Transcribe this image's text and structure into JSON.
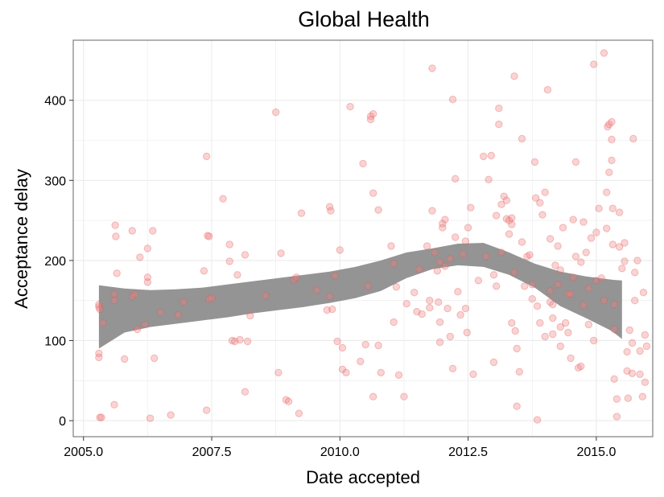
{
  "chart_data": {
    "type": "scatter",
    "title": "Global Health",
    "xlabel": "Date accepted",
    "ylabel": "Acceptance delay",
    "xlim": [
      2004.8,
      2016.1
    ],
    "ylim": [
      -20,
      475
    ],
    "x_ticks": [
      2005.0,
      2007.5,
      2010.0,
      2012.5,
      2015.0
    ],
    "x_tick_labels": [
      "2005.0",
      "2007.5",
      "2010.0",
      "2012.5",
      "2015.0"
    ],
    "y_ticks": [
      0,
      100,
      200,
      300,
      400
    ],
    "y_tick_labels": [
      "0",
      "100",
      "200",
      "300",
      "400"
    ],
    "grid": true,
    "colors": {
      "points": "#f08080",
      "points_stroke": "#e05555",
      "band": "#888888",
      "grid": "#ebebeb",
      "panel_border": "#7f7f7f"
    },
    "smooth_band": {
      "x": [
        2005.3,
        2005.8,
        2006.3,
        2006.8,
        2007.3,
        2007.8,
        2008.3,
        2008.8,
        2009.3,
        2009.8,
        2010.3,
        2010.8,
        2011.3,
        2011.8,
        2012.3,
        2012.8,
        2013.3,
        2013.8,
        2014.3,
        2014.8,
        2015.3,
        2015.5
      ],
      "lower": [
        90,
        110,
        117,
        121,
        125,
        129,
        134,
        138,
        142,
        147,
        153,
        162,
        178,
        189,
        194,
        192,
        182,
        166,
        143,
        128,
        112,
        102
      ],
      "upper": [
        169,
        165,
        163,
        164,
        166,
        170,
        174,
        178,
        182,
        186,
        192,
        200,
        210,
        215,
        221,
        222,
        210,
        196,
        186,
        180,
        176,
        175
      ]
    },
    "points": [
      [
        2005.32,
        4
      ],
      [
        2005.35,
        4
      ],
      [
        2005.3,
        84
      ],
      [
        2005.3,
        79
      ],
      [
        2005.3,
        142
      ],
      [
        2005.3,
        145
      ],
      [
        2005.32,
        139
      ],
      [
        2005.38,
        122
      ],
      [
        2005.6,
        20
      ],
      [
        2005.62,
        244
      ],
      [
        2005.63,
        230
      ],
      [
        2005.65,
        184
      ],
      [
        2005.6,
        158
      ],
      [
        2005.6,
        150
      ],
      [
        2005.8,
        77
      ],
      [
        2005.95,
        237
      ],
      [
        2005.95,
        155
      ],
      [
        2006.0,
        158
      ],
      [
        2006.05,
        114
      ],
      [
        2006.1,
        204
      ],
      [
        2006.2,
        120
      ],
      [
        2006.25,
        215
      ],
      [
        2006.25,
        179
      ],
      [
        2006.25,
        173
      ],
      [
        2006.3,
        3
      ],
      [
        2006.35,
        237
      ],
      [
        2006.38,
        78
      ],
      [
        2006.5,
        135
      ],
      [
        2006.7,
        7
      ],
      [
        2006.85,
        132
      ],
      [
        2006.95,
        148
      ],
      [
        2007.35,
        187
      ],
      [
        2007.4,
        13
      ],
      [
        2007.4,
        330
      ],
      [
        2007.42,
        231
      ],
      [
        2007.45,
        230
      ],
      [
        2007.45,
        152
      ],
      [
        2007.5,
        153
      ],
      [
        2007.72,
        277
      ],
      [
        2007.85,
        220
      ],
      [
        2007.85,
        199
      ],
      [
        2007.9,
        100
      ],
      [
        2007.95,
        99
      ],
      [
        2008.0,
        182
      ],
      [
        2008.05,
        101
      ],
      [
        2008.15,
        36
      ],
      [
        2008.15,
        207
      ],
      [
        2008.2,
        99
      ],
      [
        2008.25,
        131
      ],
      [
        2008.55,
        156
      ],
      [
        2008.75,
        385
      ],
      [
        2008.8,
        60
      ],
      [
        2008.85,
        209
      ],
      [
        2008.95,
        26
      ],
      [
        2009.0,
        24
      ],
      [
        2009.1,
        176
      ],
      [
        2009.15,
        179
      ],
      [
        2009.2,
        9
      ],
      [
        2009.25,
        259
      ],
      [
        2009.55,
        163
      ],
      [
        2009.75,
        138
      ],
      [
        2009.8,
        155
      ],
      [
        2009.8,
        267
      ],
      [
        2009.82,
        262
      ],
      [
        2009.85,
        139
      ],
      [
        2009.9,
        181
      ],
      [
        2009.95,
        99
      ],
      [
        2010.0,
        213
      ],
      [
        2010.05,
        64
      ],
      [
        2010.05,
        91
      ],
      [
        2010.12,
        60
      ],
      [
        2010.2,
        392
      ],
      [
        2010.4,
        74
      ],
      [
        2010.45,
        321
      ],
      [
        2010.5,
        95
      ],
      [
        2010.55,
        168
      ],
      [
        2010.6,
        380
      ],
      [
        2010.6,
        376
      ],
      [
        2010.65,
        383
      ],
      [
        2010.65,
        284
      ],
      [
        2010.65,
        30
      ],
      [
        2010.75,
        263
      ],
      [
        2010.75,
        94
      ],
      [
        2010.8,
        60
      ],
      [
        2011.0,
        218
      ],
      [
        2011.05,
        196
      ],
      [
        2011.05,
        123
      ],
      [
        2011.1,
        167
      ],
      [
        2011.15,
        57
      ],
      [
        2011.25,
        30
      ],
      [
        2011.3,
        146
      ],
      [
        2011.45,
        160
      ],
      [
        2011.5,
        136
      ],
      [
        2011.55,
        189
      ],
      [
        2011.6,
        133
      ],
      [
        2011.7,
        218
      ],
      [
        2011.75,
        141
      ],
      [
        2011.75,
        150
      ],
      [
        2011.8,
        440
      ],
      [
        2011.8,
        262
      ],
      [
        2011.85,
        210
      ],
      [
        2011.9,
        187
      ],
      [
        2011.92,
        148
      ],
      [
        2011.95,
        198
      ],
      [
        2011.95,
        123
      ],
      [
        2011.95,
        98
      ],
      [
        2012.0,
        246
      ],
      [
        2012.0,
        241
      ],
      [
        2012.05,
        251
      ],
      [
        2012.05,
        193
      ],
      [
        2012.1,
        140
      ],
      [
        2012.15,
        105
      ],
      [
        2012.15,
        202
      ],
      [
        2012.2,
        401
      ],
      [
        2012.2,
        65
      ],
      [
        2012.25,
        229
      ],
      [
        2012.25,
        302
      ],
      [
        2012.3,
        161
      ],
      [
        2012.35,
        132
      ],
      [
        2012.4,
        208
      ],
      [
        2012.45,
        140
      ],
      [
        2012.45,
        224
      ],
      [
        2012.48,
        110
      ],
      [
        2012.5,
        241
      ],
      [
        2012.55,
        266
      ],
      [
        2012.6,
        58
      ],
      [
        2012.7,
        175
      ],
      [
        2012.8,
        330
      ],
      [
        2012.85,
        205
      ],
      [
        2012.9,
        301
      ],
      [
        2012.95,
        331
      ],
      [
        2013.0,
        182
      ],
      [
        2013.0,
        73
      ],
      [
        2013.05,
        256
      ],
      [
        2013.05,
        168
      ],
      [
        2013.1,
        390
      ],
      [
        2013.1,
        370
      ],
      [
        2013.15,
        210
      ],
      [
        2013.15,
        270
      ],
      [
        2013.2,
        280
      ],
      [
        2013.25,
        275
      ],
      [
        2013.25,
        252
      ],
      [
        2013.3,
        250
      ],
      [
        2013.3,
        233
      ],
      [
        2013.35,
        253
      ],
      [
        2013.35,
        245
      ],
      [
        2013.35,
        122
      ],
      [
        2013.4,
        430
      ],
      [
        2013.4,
        185
      ],
      [
        2013.42,
        112
      ],
      [
        2013.45,
        90
      ],
      [
        2013.45,
        18
      ],
      [
        2013.5,
        61
      ],
      [
        2013.55,
        223
      ],
      [
        2013.55,
        352
      ],
      [
        2013.6,
        168
      ],
      [
        2013.65,
        205
      ],
      [
        2013.7,
        207
      ],
      [
        2013.75,
        170
      ],
      [
        2013.75,
        152
      ],
      [
        2013.8,
        323
      ],
      [
        2013.82,
        278
      ],
      [
        2013.85,
        1
      ],
      [
        2013.85,
        143
      ],
      [
        2013.9,
        122
      ],
      [
        2013.9,
        272
      ],
      [
        2013.95,
        257
      ],
      [
        2014.0,
        105
      ],
      [
        2014.0,
        285
      ],
      [
        2014.05,
        413
      ],
      [
        2014.1,
        227
      ],
      [
        2014.1,
        162
      ],
      [
        2014.1,
        148
      ],
      [
        2014.15,
        145
      ],
      [
        2014.15,
        128
      ],
      [
        2014.15,
        108
      ],
      [
        2014.2,
        194
      ],
      [
        2014.25,
        170
      ],
      [
        2014.25,
        218
      ],
      [
        2014.3,
        93
      ],
      [
        2014.3,
        117
      ],
      [
        2014.3,
        188
      ],
      [
        2014.35,
        241
      ],
      [
        2014.4,
        122
      ],
      [
        2014.45,
        158
      ],
      [
        2014.45,
        110
      ],
      [
        2014.5,
        158
      ],
      [
        2014.5,
        78
      ],
      [
        2014.55,
        179
      ],
      [
        2014.55,
        251
      ],
      [
        2014.6,
        323
      ],
      [
        2014.6,
        205
      ],
      [
        2014.65,
        66
      ],
      [
        2014.7,
        68
      ],
      [
        2014.7,
        198
      ],
      [
        2014.75,
        248
      ],
      [
        2014.75,
        144
      ],
      [
        2014.8,
        210
      ],
      [
        2014.85,
        120
      ],
      [
        2014.85,
        165
      ],
      [
        2014.9,
        228
      ],
      [
        2014.95,
        445
      ],
      [
        2014.95,
        100
      ],
      [
        2015.0,
        175
      ],
      [
        2015.0,
        235
      ],
      [
        2015.05,
        265
      ],
      [
        2015.1,
        178
      ],
      [
        2015.15,
        459
      ],
      [
        2015.15,
        150
      ],
      [
        2015.2,
        285
      ],
      [
        2015.2,
        240
      ],
      [
        2015.22,
        367
      ],
      [
        2015.25,
        370
      ],
      [
        2015.25,
        310
      ],
      [
        2015.3,
        373
      ],
      [
        2015.3,
        351
      ],
      [
        2015.3,
        325
      ],
      [
        2015.32,
        265
      ],
      [
        2015.32,
        220
      ],
      [
        2015.35,
        114
      ],
      [
        2015.35,
        145
      ],
      [
        2015.35,
        52
      ],
      [
        2015.4,
        27
      ],
      [
        2015.4,
        5
      ],
      [
        2015.45,
        260
      ],
      [
        2015.45,
        217
      ],
      [
        2015.5,
        190
      ],
      [
        2015.55,
        222
      ],
      [
        2015.55,
        199
      ],
      [
        2015.6,
        86
      ],
      [
        2015.6,
        62
      ],
      [
        2015.62,
        28
      ],
      [
        2015.65,
        113
      ],
      [
        2015.7,
        97
      ],
      [
        2015.7,
        59
      ],
      [
        2015.72,
        352
      ],
      [
        2015.75,
        150
      ],
      [
        2015.75,
        185
      ],
      [
        2015.8,
        200
      ],
      [
        2015.85,
        58
      ],
      [
        2015.85,
        87
      ],
      [
        2015.9,
        30
      ],
      [
        2015.92,
        160
      ],
      [
        2015.95,
        107
      ],
      [
        2015.95,
        48
      ],
      [
        2015.98,
        93
      ]
    ]
  }
}
